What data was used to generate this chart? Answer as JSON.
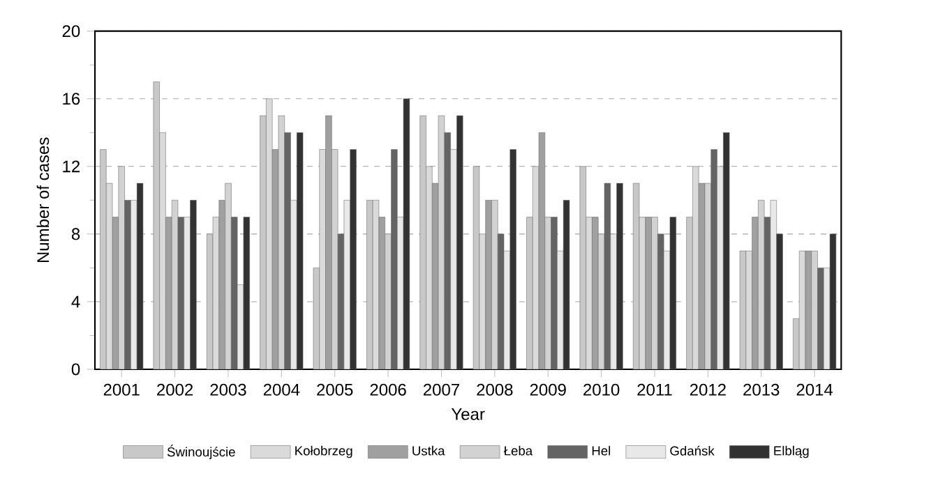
{
  "chart_data": {
    "type": "bar",
    "xlabel": "Year",
    "ylabel": "Number of cases",
    "categories": [
      "2001",
      "2002",
      "2003",
      "2004",
      "2005",
      "2006",
      "2007",
      "2008",
      "2009",
      "2010",
      "2011",
      "2012",
      "2013",
      "2014"
    ],
    "ylim": [
      0,
      20
    ],
    "yticks": [
      0,
      4,
      8,
      12,
      16,
      20
    ],
    "grid": "y",
    "legend": "bottom",
    "series": [
      {
        "name": "Świnoujście",
        "color": "#c8c8c8",
        "values": [
          13,
          17,
          8,
          15,
          6,
          10,
          15,
          12,
          9,
          12,
          11,
          9,
          7,
          3
        ]
      },
      {
        "name": "Kołobrzeg",
        "color": "#dadada",
        "values": [
          11,
          14,
          9,
          16,
          13,
          10,
          12,
          8,
          12,
          9,
          9,
          12,
          7,
          7
        ]
      },
      {
        "name": "Ustka",
        "color": "#a0a0a0",
        "values": [
          9,
          9,
          10,
          13,
          15,
          9,
          11,
          10,
          14,
          9,
          9,
          11,
          9,
          7
        ]
      },
      {
        "name": "Łeba",
        "color": "#d2d2d2",
        "values": [
          12,
          10,
          11,
          15,
          13,
          8,
          15,
          10,
          9,
          8,
          9,
          11,
          10,
          7
        ]
      },
      {
        "name": "Hel",
        "color": "#646464",
        "values": [
          10,
          9,
          9,
          14,
          8,
          13,
          14,
          8,
          9,
          11,
          8,
          13,
          9,
          6
        ]
      },
      {
        "name": "Gdańsk",
        "color": "#e8e8e8",
        "values": [
          10,
          9,
          5,
          10,
          10,
          9,
          13,
          7,
          7,
          8,
          7,
          12,
          10,
          6
        ]
      },
      {
        "name": "Elbląg",
        "color": "#323232",
        "values": [
          11,
          10,
          9,
          14,
          13,
          16,
          15,
          13,
          10,
          11,
          9,
          14,
          8,
          8
        ]
      }
    ]
  }
}
